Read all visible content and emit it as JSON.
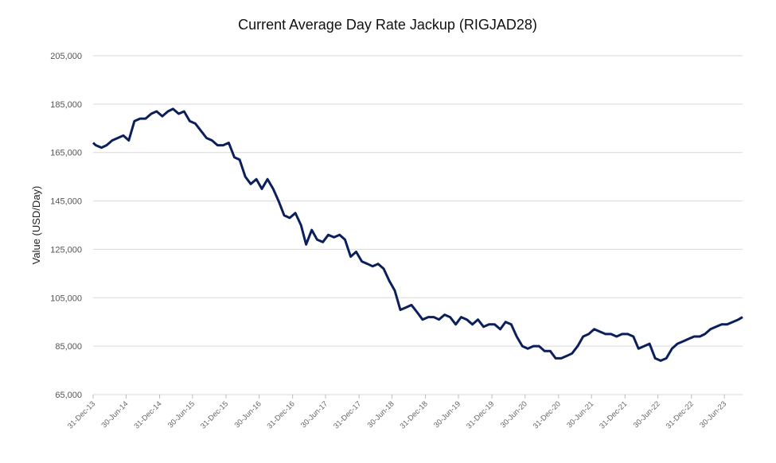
{
  "chart_data": {
    "type": "line",
    "title": "Current Average Day Rate Jackup (RIGJAD28)",
    "y_label": "Value (USD/Day)",
    "grid": true,
    "xlim": [
      "2013-12-31",
      "2023-10-08"
    ],
    "xticks": [
      {
        "value": "2013-12-31",
        "label": "31-Dec-13"
      },
      {
        "value": "2014-06-30",
        "label": "30-Jun-14"
      },
      {
        "value": "2014-12-31",
        "label": "31-Dec-14"
      },
      {
        "value": "2015-06-30",
        "label": "30-Jun-15"
      },
      {
        "value": "2015-12-31",
        "label": "31-Dec-15"
      },
      {
        "value": "2016-06-30",
        "label": "30-Jun-16"
      },
      {
        "value": "2016-12-31",
        "label": "31-Dec-16"
      },
      {
        "value": "2017-06-30",
        "label": "30-Jun-17"
      },
      {
        "value": "2017-12-31",
        "label": "31-Dec-17"
      },
      {
        "value": "2018-06-30",
        "label": "30-Jun-18"
      },
      {
        "value": "2018-12-31",
        "label": "31-Dec-18"
      },
      {
        "value": "2019-06-30",
        "label": "30-Jun-19"
      },
      {
        "value": "2019-12-31",
        "label": "31-Dec-19"
      },
      {
        "value": "2020-06-30",
        "label": "30-Jun-20"
      },
      {
        "value": "2020-12-31",
        "label": "31-Dec-20"
      },
      {
        "value": "2021-06-30",
        "label": "30-Jun-21"
      },
      {
        "value": "2021-12-31",
        "label": "31-Dec-21"
      },
      {
        "value": "2022-06-30",
        "label": "30-Jun-22"
      },
      {
        "value": "2022-12-31",
        "label": "31-Dec-22"
      },
      {
        "value": "2023-06-30",
        "label": "30-Jun-23"
      }
    ],
    "ylim": [
      65000,
      205000
    ],
    "yticks": [
      {
        "value": 65000,
        "label": "65,000"
      },
      {
        "value": 85000,
        "label": "85,000"
      },
      {
        "value": 105000,
        "label": "105,000"
      },
      {
        "value": 125000,
        "label": "125,000"
      },
      {
        "value": 145000,
        "label": "145,000"
      },
      {
        "value": 165000,
        "label": "165,000"
      },
      {
        "value": 185000,
        "label": "185,000"
      },
      {
        "value": 205000,
        "label": "205,000"
      }
    ],
    "x": [
      "2013-12-31",
      "2014-01-15",
      "2014-02-15",
      "2014-03-15",
      "2014-04-15",
      "2014-05-15",
      "2014-06-15",
      "2014-07-15",
      "2014-08-15",
      "2014-09-15",
      "2014-10-15",
      "2014-11-15",
      "2014-12-15",
      "2015-01-15",
      "2015-02-15",
      "2015-03-15",
      "2015-04-15",
      "2015-05-15",
      "2015-06-15",
      "2015-07-15",
      "2015-08-15",
      "2015-09-15",
      "2015-10-15",
      "2015-11-15",
      "2015-12-15",
      "2016-01-15",
      "2016-02-15",
      "2016-03-15",
      "2016-04-15",
      "2016-05-15",
      "2016-06-15",
      "2016-07-15",
      "2016-08-15",
      "2016-09-15",
      "2016-10-15",
      "2016-11-15",
      "2016-12-15",
      "2017-01-15",
      "2017-02-15",
      "2017-03-15",
      "2017-04-15",
      "2017-05-15",
      "2017-06-15",
      "2017-07-15",
      "2017-08-15",
      "2017-09-15",
      "2017-10-15",
      "2017-11-15",
      "2017-12-15",
      "2018-01-15",
      "2018-02-15",
      "2018-03-15",
      "2018-04-15",
      "2018-05-15",
      "2018-06-15",
      "2018-07-15",
      "2018-08-15",
      "2018-09-15",
      "2018-10-15",
      "2018-11-15",
      "2018-12-15",
      "2019-01-15",
      "2019-02-15",
      "2019-03-15",
      "2019-04-15",
      "2019-05-15",
      "2019-06-15",
      "2019-07-15",
      "2019-08-15",
      "2019-09-15",
      "2019-10-15",
      "2019-11-15",
      "2019-12-15",
      "2020-01-15",
      "2020-02-15",
      "2020-03-15",
      "2020-04-15",
      "2020-05-15",
      "2020-06-15",
      "2020-07-15",
      "2020-08-15",
      "2020-09-15",
      "2020-10-15",
      "2020-11-15",
      "2020-12-15",
      "2021-01-15",
      "2021-02-15",
      "2021-03-15",
      "2021-04-15",
      "2021-05-15",
      "2021-06-15",
      "2021-07-15",
      "2021-08-15",
      "2021-09-15",
      "2021-10-15",
      "2021-11-15",
      "2021-12-15",
      "2022-01-15",
      "2022-02-15",
      "2022-03-15",
      "2022-04-15",
      "2022-05-15",
      "2022-06-15",
      "2022-07-15",
      "2022-08-15",
      "2022-09-15",
      "2022-10-15",
      "2022-11-15",
      "2022-12-15",
      "2023-01-15",
      "2023-02-15",
      "2023-03-15",
      "2023-04-15",
      "2023-05-15",
      "2023-06-15",
      "2023-07-15",
      "2023-08-15",
      "2023-09-15",
      "2023-10-08"
    ],
    "series": [
      {
        "name": "RIGJAD28",
        "color": "#0b1f5c",
        "values": [
          169000,
          168000,
          167000,
          168000,
          170000,
          171000,
          172000,
          170000,
          178000,
          179000,
          179000,
          181000,
          182000,
          180000,
          182000,
          183000,
          181000,
          182000,
          178000,
          177000,
          174000,
          171000,
          170000,
          168000,
          168000,
          169000,
          163000,
          162000,
          155000,
          152000,
          154000,
          150000,
          154000,
          150000,
          145000,
          139000,
          138000,
          140000,
          135000,
          127000,
          133000,
          129000,
          128000,
          131000,
          130000,
          131000,
          129000,
          122000,
          124000,
          120000,
          119000,
          118000,
          119000,
          117000,
          112000,
          108000,
          100000,
          101000,
          102000,
          99000,
          96000,
          97000,
          97000,
          96000,
          98000,
          97000,
          94000,
          97000,
          96000,
          94000,
          96000,
          93000,
          94000,
          94000,
          92000,
          95000,
          94000,
          89000,
          85000,
          84000,
          85000,
          85000,
          83000,
          83000,
          80000,
          80000,
          81000,
          82000,
          85000,
          89000,
          90000,
          92000,
          91000,
          90000,
          90000,
          89000,
          90000,
          90000,
          89000,
          84000,
          85000,
          86000,
          80000,
          79000,
          80000,
          84000,
          86000,
          87000,
          88000,
          89000,
          89000,
          90000,
          92000,
          93000,
          94000,
          94000,
          95000,
          96000,
          97000
        ]
      }
    ]
  }
}
